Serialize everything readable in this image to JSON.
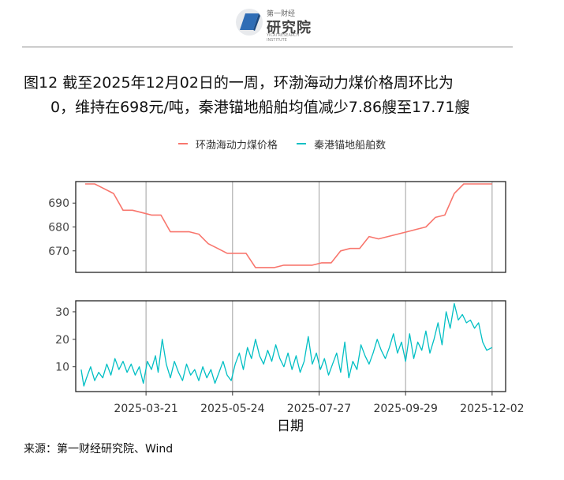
{
  "header": {
    "logo_small_text": "第一财经",
    "logo_main_text": "研究院",
    "logo_sub_text": "YICAI RESEARCH INSTITUTE"
  },
  "title": {
    "line1": "图12  截至2025年12月02日的一周，环渤海动力煤价格周环比为",
    "line2": "0，维持在698元/吨，秦港锚地船舶均值减少7.86艘至17.71艘"
  },
  "source": "来源：第一财经研究院、Wind",
  "colors": {
    "coal_price": "#F8766D",
    "ships": "#00BFC4"
  },
  "chart_data": {
    "type": "line",
    "xlabel": "日期",
    "x_ticks": [
      "2025-03-21",
      "2025-05-24",
      "2025-07-27",
      "2025-09-29",
      "2025-12-02"
    ],
    "x_range": [
      "2025-01-28",
      "2025-12-12"
    ],
    "legend": [
      "环渤海动力煤价格",
      "秦港锚地船舶数"
    ],
    "legend_position": "top",
    "grid": "vertical",
    "panels": [
      {
        "series_name": "环渤海动力煤价格",
        "ylim": [
          661,
          699
        ],
        "y_ticks": [
          670,
          680,
          690
        ],
        "points": [
          [
            "2025-02-04",
            698
          ],
          [
            "2025-02-11",
            698
          ],
          [
            "2025-02-25",
            694
          ],
          [
            "2025-03-04",
            687
          ],
          [
            "2025-03-11",
            687
          ],
          [
            "2025-03-18",
            686
          ],
          [
            "2025-03-25",
            685
          ],
          [
            "2025-04-01",
            685
          ],
          [
            "2025-04-08",
            678
          ],
          [
            "2025-04-15",
            678
          ],
          [
            "2025-04-22",
            678
          ],
          [
            "2025-04-29",
            677
          ],
          [
            "2025-05-06",
            673
          ],
          [
            "2025-05-13",
            671
          ],
          [
            "2025-05-20",
            669
          ],
          [
            "2025-05-27",
            669
          ],
          [
            "2025-06-03",
            669
          ],
          [
            "2025-06-10",
            663
          ],
          [
            "2025-06-17",
            663
          ],
          [
            "2025-06-24",
            663
          ],
          [
            "2025-07-01",
            664
          ],
          [
            "2025-07-08",
            664
          ],
          [
            "2025-07-15",
            664
          ],
          [
            "2025-07-22",
            664
          ],
          [
            "2025-07-29",
            665
          ],
          [
            "2025-08-05",
            665
          ],
          [
            "2025-08-12",
            670
          ],
          [
            "2025-08-19",
            671
          ],
          [
            "2025-08-26",
            671
          ],
          [
            "2025-09-02",
            676
          ],
          [
            "2025-09-09",
            675
          ],
          [
            "2025-09-16",
            676
          ],
          [
            "2025-09-23",
            677
          ],
          [
            "2025-09-30",
            678
          ],
          [
            "2025-10-07",
            679
          ],
          [
            "2025-10-14",
            680
          ],
          [
            "2025-10-21",
            684
          ],
          [
            "2025-10-28",
            685
          ],
          [
            "2025-11-04",
            694
          ],
          [
            "2025-11-11",
            698
          ],
          [
            "2025-11-18",
            698
          ],
          [
            "2025-11-25",
            698
          ],
          [
            "2025-12-02",
            698
          ]
        ]
      },
      {
        "series_name": "秦港锚地船舶数",
        "ylim": [
          1,
          34
        ],
        "y_ticks": [
          10,
          20,
          30
        ],
        "points": [
          [
            "2025-02-01",
            9
          ],
          [
            "2025-02-03",
            3
          ],
          [
            "2025-02-05",
            6
          ],
          [
            "2025-02-08",
            10
          ],
          [
            "2025-02-11",
            5
          ],
          [
            "2025-02-14",
            8
          ],
          [
            "2025-02-17",
            6
          ],
          [
            "2025-02-20",
            11
          ],
          [
            "2025-02-23",
            7
          ],
          [
            "2025-02-26",
            13
          ],
          [
            "2025-03-01",
            9
          ],
          [
            "2025-03-04",
            12
          ],
          [
            "2025-03-07",
            8
          ],
          [
            "2025-03-10",
            11
          ],
          [
            "2025-03-13",
            7
          ],
          [
            "2025-03-16",
            10
          ],
          [
            "2025-03-19",
            4
          ],
          [
            "2025-03-22",
            12
          ],
          [
            "2025-03-25",
            9
          ],
          [
            "2025-03-28",
            14
          ],
          [
            "2025-03-30",
            8
          ],
          [
            "2025-04-02",
            20
          ],
          [
            "2025-04-05",
            11
          ],
          [
            "2025-04-08",
            6
          ],
          [
            "2025-04-11",
            12
          ],
          [
            "2025-04-14",
            8
          ],
          [
            "2025-04-17",
            5
          ],
          [
            "2025-04-20",
            11
          ],
          [
            "2025-04-23",
            7
          ],
          [
            "2025-04-26",
            9
          ],
          [
            "2025-04-29",
            5
          ],
          [
            "2025-05-02",
            10
          ],
          [
            "2025-05-05",
            6
          ],
          [
            "2025-05-08",
            9
          ],
          [
            "2025-05-11",
            4
          ],
          [
            "2025-05-14",
            8
          ],
          [
            "2025-05-17",
            12
          ],
          [
            "2025-05-20",
            7
          ],
          [
            "2025-05-23",
            5
          ],
          [
            "2025-05-26",
            11
          ],
          [
            "2025-05-29",
            15
          ],
          [
            "2025-06-01",
            9
          ],
          [
            "2025-06-04",
            17
          ],
          [
            "2025-06-07",
            13
          ],
          [
            "2025-06-10",
            20
          ],
          [
            "2025-06-13",
            14
          ],
          [
            "2025-06-16",
            11
          ],
          [
            "2025-06-19",
            16
          ],
          [
            "2025-06-22",
            12
          ],
          [
            "2025-06-25",
            18
          ],
          [
            "2025-06-28",
            13
          ],
          [
            "2025-07-01",
            10
          ],
          [
            "2025-07-04",
            15
          ],
          [
            "2025-07-07",
            9
          ],
          [
            "2025-07-10",
            14
          ],
          [
            "2025-07-13",
            8
          ],
          [
            "2025-07-16",
            12
          ],
          [
            "2025-07-19",
            21
          ],
          [
            "2025-07-22",
            11
          ],
          [
            "2025-07-25",
            15
          ],
          [
            "2025-07-28",
            9
          ],
          [
            "2025-07-31",
            13
          ],
          [
            "2025-08-03",
            7
          ],
          [
            "2025-08-06",
            11
          ],
          [
            "2025-08-09",
            15
          ],
          [
            "2025-08-12",
            8
          ],
          [
            "2025-08-15",
            19
          ],
          [
            "2025-08-18",
            6
          ],
          [
            "2025-08-21",
            12
          ],
          [
            "2025-08-24",
            9
          ],
          [
            "2025-08-27",
            18
          ],
          [
            "2025-08-30",
            14
          ],
          [
            "2025-09-02",
            11
          ],
          [
            "2025-09-05",
            15
          ],
          [
            "2025-09-08",
            20
          ],
          [
            "2025-09-11",
            16
          ],
          [
            "2025-09-14",
            13
          ],
          [
            "2025-09-17",
            17
          ],
          [
            "2025-09-20",
            22
          ],
          [
            "2025-09-23",
            15
          ],
          [
            "2025-09-26",
            19
          ],
          [
            "2025-09-29",
            12
          ],
          [
            "2025-10-02",
            22
          ],
          [
            "2025-10-05",
            13
          ],
          [
            "2025-10-08",
            19
          ],
          [
            "2025-10-11",
            16
          ],
          [
            "2025-10-14",
            23
          ],
          [
            "2025-10-17",
            15
          ],
          [
            "2025-10-20",
            20
          ],
          [
            "2025-10-23",
            26
          ],
          [
            "2025-10-26",
            18
          ],
          [
            "2025-10-29",
            30
          ],
          [
            "2025-11-01",
            24
          ],
          [
            "2025-11-04",
            33
          ],
          [
            "2025-11-07",
            27
          ],
          [
            "2025-11-10",
            29
          ],
          [
            "2025-11-13",
            26
          ],
          [
            "2025-11-16",
            27
          ],
          [
            "2025-11-19",
            24
          ],
          [
            "2025-11-22",
            26
          ],
          [
            "2025-11-25",
            19
          ],
          [
            "2025-11-28",
            16
          ],
          [
            "2025-12-02",
            17
          ]
        ]
      }
    ]
  }
}
